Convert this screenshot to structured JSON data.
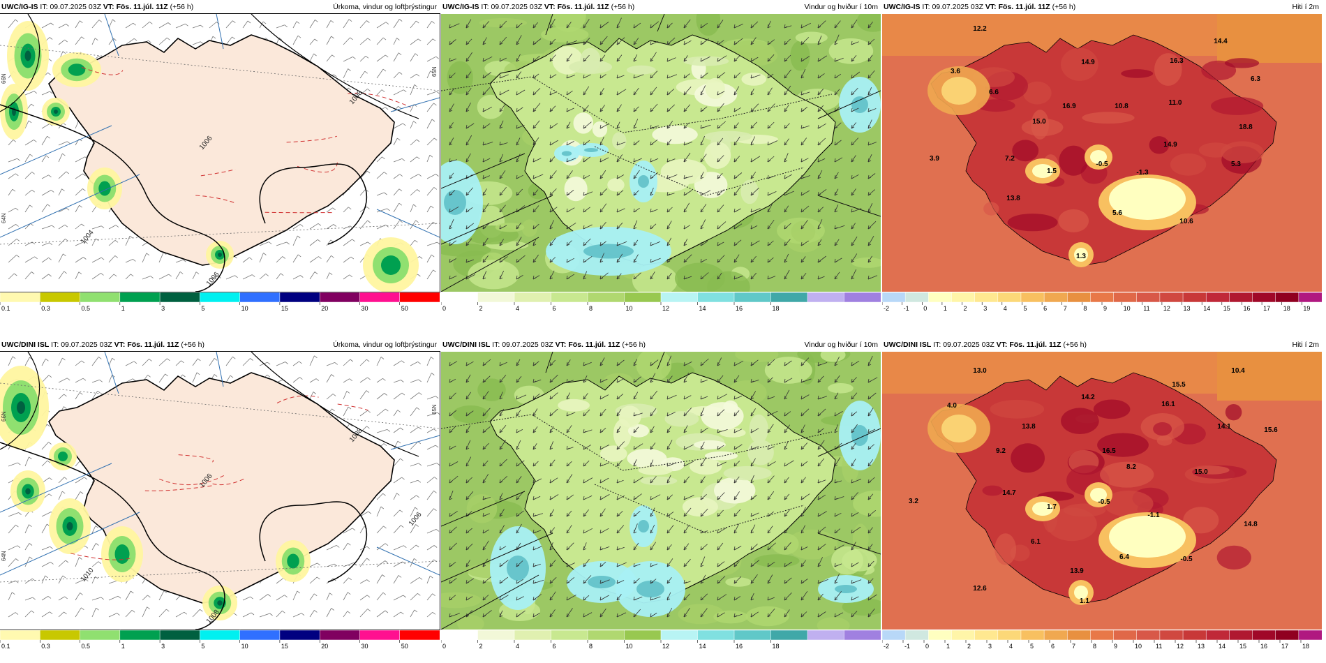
{
  "rows": [
    {
      "model": "UWC/IG-IS",
      "panels": [
        {
          "kind": "precip",
          "model": "UWC/IG-IS",
          "it_label": "IT:",
          "it": "09.07.2025 03Z",
          "vt_label": "VT:",
          "vt": "Fös. 11.júl. 11Z",
          "lead": "(+56 h)",
          "title": "Úrkoma, vindur og loftþrýstingur",
          "lat_labels": [
            "66N",
            "64N",
            "65N"
          ],
          "isobars": [
            "1006",
            "1008",
            "1004",
            "1006"
          ],
          "colorbar": {
            "colors": [
              "#fff9b0",
              "#c8c800",
              "#90e070",
              "#00a050",
              "#006040",
              "#00f0f0",
              "#3070ff",
              "#000080",
              "#800060",
              "#ff1090",
              "#ff0000"
            ],
            "labels": [
              "0.1",
              "0.3",
              "0.5",
              "1",
              "3",
              "5",
              "10",
              "15",
              "20",
              "30",
              "50"
            ]
          }
        },
        {
          "kind": "wind",
          "model": "UWC/IG-IS",
          "it_label": "IT:",
          "it": "09.07.2025 03Z",
          "vt_label": "VT:",
          "vt": "Fös. 11.júl. 11Z",
          "lead": "(+56 h)",
          "title": "Vindur og hviður í 10m",
          "colorbar": {
            "colors": [
              "#ffffff",
              "#f2f8d8",
              "#e0f0b0",
              "#c8e890",
              "#b0d870",
              "#98c850",
              "#b8f4f4",
              "#80e0e0",
              "#60c8c8",
              "#40a8a8",
              "#c0b0f0",
              "#a080e0"
            ],
            "labels": [
              "0",
              "2",
              "4",
              "6",
              "8",
              "10",
              "12",
              "14",
              "16",
              "18"
            ]
          }
        },
        {
          "kind": "temp",
          "model": "UWC/IG-IS",
          "it_label": "IT:",
          "it": "09.07.2025 03Z",
          "vt_label": "VT:",
          "vt": "Fös. 11.júl. 11Z",
          "lead": "(+56 h)",
          "title": "Hiti í 2m",
          "values": [
            "12.2",
            "3.6",
            "6.6",
            "14.9",
            "16.3",
            "14.4",
            "6.3",
            "15.0",
            "16.9",
            "10.8",
            "11.0",
            "18.8",
            "3.9",
            "7.2",
            "1.5",
            "-0.5",
            "14.9",
            "5.3",
            "-1.3",
            "13.8",
            "5.6",
            "10.6",
            "1.3"
          ],
          "colorbar": {
            "colors": [
              "#b8d8f8",
              "#d0e8e0",
              "#ffffc0",
              "#fff5a8",
              "#ffe890",
              "#fcd878",
              "#f8c060",
              "#f0a850",
              "#e89040",
              "#e87848",
              "#e06848",
              "#d85848",
              "#d04840",
              "#c83838",
              "#c02838",
              "#b01830",
              "#a00828",
              "#900020",
              "#b01880"
            ],
            "labels": [
              "-2",
              "-1",
              "0",
              "1",
              "2",
              "3",
              "4",
              "5",
              "6",
              "7",
              "8",
              "9",
              "10",
              "11",
              "12",
              "13",
              "14",
              "15",
              "16",
              "17",
              "18",
              "19"
            ]
          }
        }
      ]
    },
    {
      "model": "UWC/DINI ISL",
      "panels": [
        {
          "kind": "precip",
          "model": "UWC/DINI ISL",
          "it_label": "IT:",
          "it": "09.07.2025 03Z",
          "vt_label": "VT:",
          "vt": "Fös. 11.júl. 11Z",
          "lead": "(+56 h)",
          "title": "Úrkoma, vindur og loftþrýstingur",
          "lat_labels": [
            "66N",
            "64N",
            "65N"
          ],
          "isobars": [
            "1006",
            "1008",
            "1010",
            "1008",
            "1006"
          ],
          "colorbar": {
            "colors": [
              "#fff9b0",
              "#c8c800",
              "#90e070",
              "#00a050",
              "#006040",
              "#00f0f0",
              "#3070ff",
              "#000080",
              "#800060",
              "#ff1090",
              "#ff0000"
            ],
            "labels": [
              "0.1",
              "0.3",
              "0.5",
              "1",
              "3",
              "5",
              "10",
              "15",
              "20",
              "30",
              "50"
            ]
          }
        },
        {
          "kind": "wind",
          "model": "UWC/DINI ISL",
          "it_label": "IT:",
          "it": "09.07.2025 03Z",
          "vt_label": "VT:",
          "vt": "Fös. 11.júl. 11Z",
          "lead": "(+56 h)",
          "title": "Vindur og hviður í 10m",
          "colorbar": {
            "colors": [
              "#ffffff",
              "#f2f8d8",
              "#e0f0b0",
              "#c8e890",
              "#b0d870",
              "#98c850",
              "#b8f4f4",
              "#80e0e0",
              "#60c8c8",
              "#40a8a8",
              "#c0b0f0",
              "#a080e0"
            ],
            "labels": [
              "0",
              "2",
              "4",
              "6",
              "8",
              "10",
              "12",
              "14",
              "16",
              "18"
            ]
          }
        },
        {
          "kind": "temp",
          "model": "UWC/DINI ISL",
          "it_label": "IT:",
          "it": "09.07.2025 03Z",
          "vt_label": "VT:",
          "vt": "Fös. 11.júl. 11Z",
          "lead": "(+56 h)",
          "title": "Hiti í 2m",
          "values": [
            "13.0",
            "4.0",
            "14.2",
            "15.5",
            "10.4",
            "16.1",
            "13.8",
            "9.2",
            "16.5",
            "8.2",
            "14.1",
            "15.6",
            "14.7",
            "15.0",
            "3.2",
            "1.7",
            "-0.5",
            "-1.1",
            "14.8",
            "6.1",
            "6.4",
            "-0.5",
            "13.9",
            "12.6",
            "1.1"
          ],
          "colorbar": {
            "colors": [
              "#b8d8f8",
              "#d0e8e0",
              "#ffffc0",
              "#fff5a8",
              "#ffe890",
              "#fcd878",
              "#f8c060",
              "#f0a850",
              "#e89040",
              "#e87848",
              "#e06848",
              "#d85848",
              "#d04840",
              "#c83838",
              "#c02838",
              "#b01830",
              "#a00828",
              "#900020",
              "#b01880"
            ],
            "labels": [
              "-2",
              "-1",
              "0",
              "1",
              "2",
              "3",
              "4",
              "5",
              "6",
              "7",
              "8",
              "9",
              "10",
              "11",
              "12",
              "13",
              "14",
              "15",
              "16",
              "17",
              "18"
            ]
          }
        }
      ]
    }
  ]
}
